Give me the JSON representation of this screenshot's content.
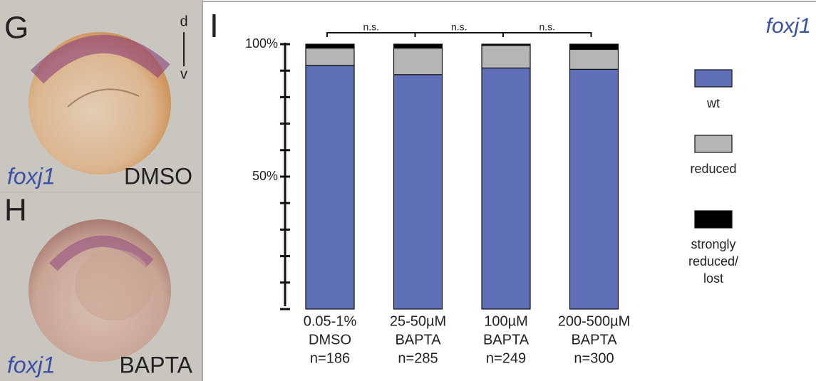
{
  "panels": [
    {
      "label": "G",
      "axis_top": "d",
      "axis_bottom": "v",
      "gene": "foxj1",
      "treatment": "DMSO"
    },
    {
      "label": "H",
      "gene": "foxj1",
      "treatment": "BAPTA"
    }
  ],
  "chart_data": {
    "type": "stacked_bar",
    "panel_label": "I",
    "title": "foxj1",
    "categories": [
      [
        "0.05-1%",
        "DMSO",
        "n=186"
      ],
      [
        "25-50µM",
        "BAPTA",
        "n=285"
      ],
      [
        "100µM",
        "BAPTA",
        "n=249"
      ],
      [
        "200-500µM",
        "BAPTA",
        "n=300"
      ]
    ],
    "series": [
      {
        "name": "wt",
        "color": "#6070b8",
        "values": [
          92,
          88.5,
          91,
          90.5
        ]
      },
      {
        "name": "reduced",
        "color": "#b5b5b5",
        "values": [
          6.5,
          10,
          8.5,
          7.5
        ]
      },
      {
        "name": "strongly reduced/ lost",
        "color": "#000000",
        "values": [
          1.5,
          1.5,
          0.5,
          2
        ]
      }
    ],
    "ylim": [
      0,
      100
    ],
    "yticks": [
      {
        "value": 50,
        "label": "50%"
      },
      {
        "value": 100,
        "label": "100%"
      }
    ],
    "minor_yticks": [
      0,
      10,
      20,
      30,
      40,
      50,
      60,
      70,
      80,
      90,
      100
    ],
    "annotations": [
      "n.s.",
      "n.s.",
      "n.s."
    ]
  }
}
